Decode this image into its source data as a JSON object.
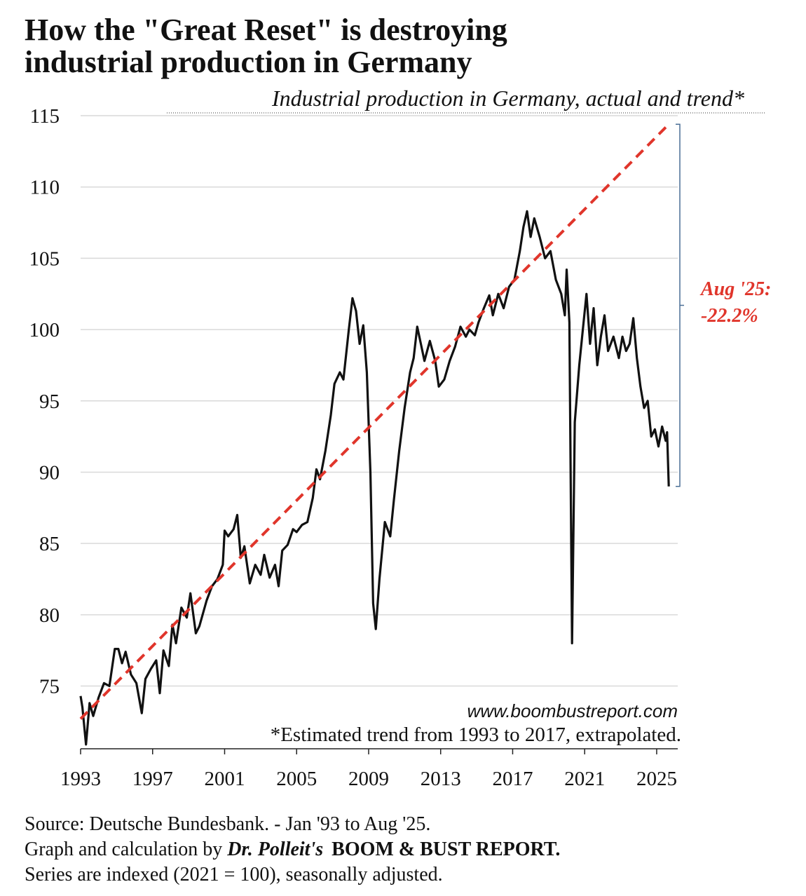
{
  "chart_data": {
    "type": "line",
    "title": [
      "How the \"Great Reset\" is destroying",
      "industrial production in Germany"
    ],
    "subtitle": "Industrial production in Germany, actual and trend*",
    "annotation": [
      "Aug '25:",
      "-22.2%"
    ],
    "watermark": "www.boombustreport.com",
    "footnote": "*Estimated trend from 1993 to 2017, extrapolated.",
    "source": [
      "Source: Deutsche Bundesbank. - Jan '93 to Aug '25.",
      "Graph and calculation by ",
      "Dr. Polleit's",
      "BOOM & BUST REPORT.",
      "Series are indexed (2021 = 100), seasonally adjusted."
    ],
    "xlim": [
      1993,
      2026.17
    ],
    "xticks": [
      1993,
      1997,
      2001,
      2005,
      2009,
      2013,
      2017,
      2021,
      2025
    ],
    "ylim": [
      70.6,
      115
    ],
    "yticks": [
      75,
      80,
      85,
      90,
      95,
      100,
      105,
      110,
      115
    ],
    "grid": true,
    "series": [
      {
        "color": "#111111",
        "dashed": false,
        "x": [
          1993.0,
          1993.1,
          1993.3,
          1993.5,
          1993.7,
          1994.0,
          1994.3,
          1994.6,
          1994.9,
          1995.1,
          1995.3,
          1995.5,
          1995.8,
          1996.1,
          1996.4,
          1996.6,
          1996.9,
          1997.2,
          1997.4,
          1997.6,
          1997.9,
          1998.1,
          1998.3,
          1998.6,
          1998.9,
          1999.1,
          1999.4,
          1999.6,
          2000.0,
          2000.3,
          2000.6,
          2000.9,
          2001.0,
          2001.2,
          2001.5,
          2001.7,
          2001.9,
          2002.1,
          2002.4,
          2002.7,
          2003.0,
          2003.2,
          2003.5,
          2003.8,
          2004.0,
          2004.2,
          2004.5,
          2004.8,
          2005.0,
          2005.3,
          2005.6,
          2005.9,
          2006.1,
          2006.3,
          2006.6,
          2006.9,
          2007.1,
          2007.4,
          2007.6,
          2007.9,
          2008.1,
          2008.3,
          2008.5,
          2008.7,
          2008.9,
          2009.1,
          2009.25,
          2009.4,
          2009.6,
          2009.9,
          2010.2,
          2010.4,
          2010.7,
          2011.0,
          2011.3,
          2011.5,
          2011.7,
          2011.9,
          2012.1,
          2012.4,
          2012.7,
          2012.9,
          2013.2,
          2013.5,
          2013.8,
          2014.1,
          2014.4,
          2014.6,
          2014.9,
          2015.1,
          2015.4,
          2015.7,
          2015.9,
          2016.2,
          2016.5,
          2016.8,
          2017.1,
          2017.4,
          2017.6,
          2017.8,
          2018.0,
          2018.2,
          2018.5,
          2018.8,
          2019.1,
          2019.4,
          2019.7,
          2019.9,
          2020.0,
          2020.15,
          2020.3,
          2020.45,
          2020.7,
          2020.9,
          2021.1,
          2021.3,
          2021.5,
          2021.7,
          2021.9,
          2022.1,
          2022.3,
          2022.6,
          2022.9,
          2023.1,
          2023.3,
          2023.5,
          2023.7,
          2023.9,
          2024.1,
          2024.3,
          2024.5,
          2024.7,
          2024.9,
          2025.1,
          2025.3,
          2025.5,
          2025.58,
          2025.67
        ],
        "values": [
          74.3,
          73.5,
          70.9,
          73.8,
          72.9,
          74.2,
          75.2,
          75.0,
          77.6,
          77.6,
          76.6,
          77.4,
          75.8,
          75.2,
          73.1,
          75.5,
          76.2,
          76.8,
          74.5,
          77.5,
          76.4,
          79.3,
          78.0,
          80.5,
          79.8,
          81.5,
          78.7,
          79.2,
          81.0,
          82.0,
          82.5,
          83.5,
          85.9,
          85.5,
          86.0,
          87.0,
          84.0,
          84.8,
          82.2,
          83.5,
          82.8,
          84.2,
          82.6,
          83.5,
          82.0,
          84.5,
          84.9,
          86.0,
          85.8,
          86.3,
          86.5,
          88.2,
          90.2,
          89.5,
          91.5,
          94.0,
          96.2,
          97.0,
          96.5,
          100.0,
          102.2,
          101.3,
          99.0,
          100.3,
          97.0,
          90.0,
          80.8,
          79.0,
          82.5,
          86.5,
          85.5,
          88.0,
          91.5,
          94.5,
          97.0,
          98.0,
          100.2,
          99.0,
          97.8,
          99.2,
          97.8,
          96.0,
          96.5,
          97.8,
          98.8,
          100.2,
          99.5,
          100.0,
          99.6,
          100.5,
          101.5,
          102.4,
          101.0,
          102.5,
          101.5,
          103.0,
          103.5,
          105.5,
          107.2,
          108.3,
          106.5,
          107.8,
          106.5,
          105.0,
          105.5,
          103.5,
          102.5,
          101.0,
          104.2,
          100.5,
          78.0,
          93.5,
          97.5,
          100.0,
          102.5,
          99.0,
          101.5,
          97.5,
          99.5,
          101.0,
          98.5,
          99.5,
          98.0,
          99.5,
          98.5,
          99.0,
          100.8,
          98.0,
          96.0,
          94.5,
          95.0,
          92.5,
          93.0,
          91.8,
          93.2,
          92.2,
          92.8,
          89.0
        ]
      },
      {
        "color": "#e0352b",
        "dashed": true,
        "x": [
          1993.0,
          2025.67
        ],
        "values": [
          72.7,
          114.4
        ]
      }
    ]
  }
}
